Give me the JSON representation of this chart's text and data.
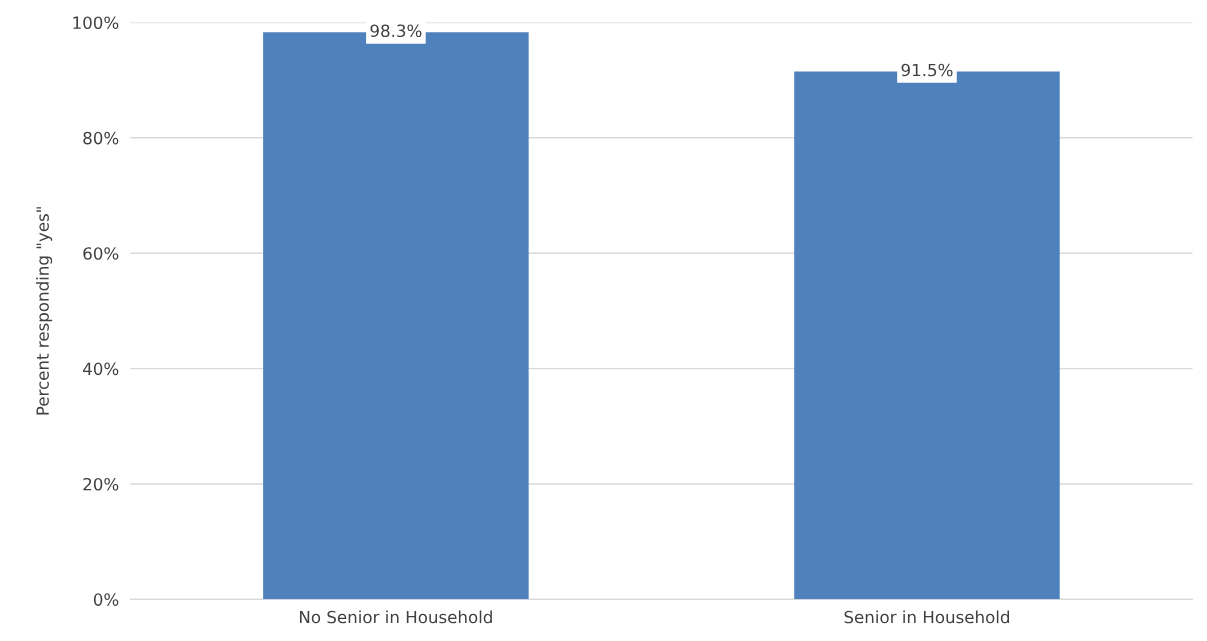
{
  "chart_data": {
    "type": "bar",
    "ylabel": "Percent responding \"yes\"",
    "categories": [
      "No Senior in Household",
      "Senior in Household"
    ],
    "values": [
      98.3,
      91.5
    ],
    "value_labels": [
      "98.3%",
      "91.5%"
    ],
    "color": "#4f81bd",
    "ylim": [
      0,
      100
    ],
    "yticks": [
      {
        "value": 0,
        "label": "0%"
      },
      {
        "value": 20,
        "label": "20%"
      },
      {
        "value": 40,
        "label": "40%"
      },
      {
        "value": 60,
        "label": "60%"
      },
      {
        "value": 80,
        "label": "80%"
      },
      {
        "value": 100,
        "label": "100%"
      }
    ],
    "grid": "y"
  }
}
